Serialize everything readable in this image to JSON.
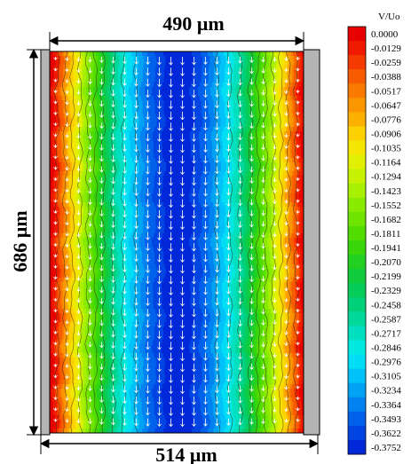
{
  "dimensions": {
    "top_width": "490 µm",
    "bottom_width": "514 µm",
    "height": "686 µm"
  },
  "colorbar": {
    "title": "V/Uo",
    "levels": [
      "0.0000",
      "-0.0129",
      "-0.0259",
      "-0.0388",
      "-0.0517",
      "-0.0647",
      "-0.0776",
      "-0.0906",
      "-0.1035",
      "-0.1164",
      "-0.1294",
      "-0.1423",
      "-0.1552",
      "-0.1682",
      "-0.1811",
      "-0.1941",
      "-0.2070",
      "-0.2199",
      "-0.2329",
      "-0.2458",
      "-0.2587",
      "-0.2717",
      "-0.2846",
      "-0.2976",
      "-0.3105",
      "-0.3234",
      "-0.3364",
      "-0.3493",
      "-0.3622",
      "-0.3752"
    ],
    "colors": [
      "#e60000",
      "#f01a00",
      "#f53a00",
      "#f85c00",
      "#fa7a00",
      "#fb9500",
      "#fcb000",
      "#fdd000",
      "#f5e600",
      "#e1ef00",
      "#c6f200",
      "#a9f000",
      "#8aeb00",
      "#6ee400",
      "#52dd00",
      "#38d60a",
      "#22d022",
      "#10cc3c",
      "#06cc5a",
      "#00d07a",
      "#00d89c",
      "#00e0c0",
      "#00e8e0",
      "#00ddf5",
      "#00c2f8",
      "#00a2f4",
      "#0082f0",
      "#0062ea",
      "#0044e2",
      "#0028d8"
    ]
  },
  "field": {
    "flow_direction": "downward",
    "wall_color": "#b4b4b4",
    "velocity_range": [
      0.0,
      -0.3752
    ]
  }
}
